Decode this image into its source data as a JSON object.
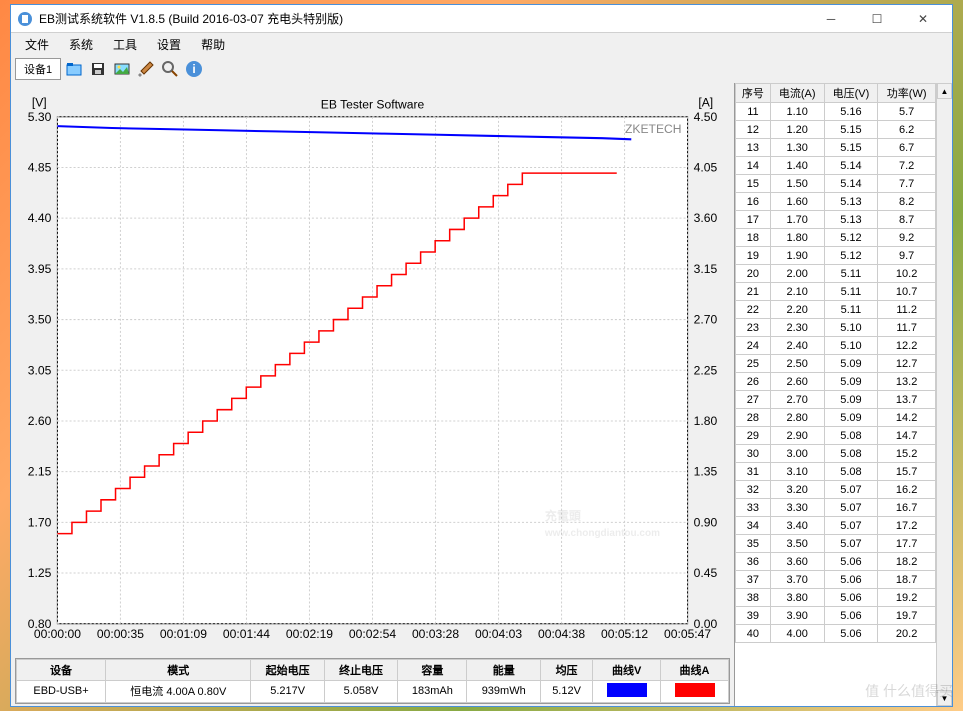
{
  "window": {
    "title": "EB测试系统软件 V1.8.5 (Build 2016-03-07 充电头特别版)"
  },
  "menu": {
    "items": [
      "文件",
      "系统",
      "工具",
      "设置",
      "帮助"
    ]
  },
  "toolbar": {
    "tab": "设备1"
  },
  "chart": {
    "title": "EB Tester Software",
    "watermark": "ZKETECH",
    "y1_label": "[V]",
    "y2_label": "[A]",
    "y1_min": 0.8,
    "y1_max": 5.3,
    "y1_step": 0.45,
    "y2_min": 0.0,
    "y2_max": 4.5,
    "y2_step": 0.45,
    "x_labels": [
      "00:00:00",
      "00:00:35",
      "00:01:09",
      "00:01:44",
      "00:02:19",
      "00:02:54",
      "00:03:28",
      "00:04:03",
      "00:04:38",
      "00:05:12",
      "00:05:47"
    ],
    "y1_ticks": [
      "0.80",
      "1.25",
      "1.70",
      "2.15",
      "2.60",
      "3.05",
      "3.50",
      "3.95",
      "4.40",
      "4.85",
      "5.30"
    ],
    "y2_ticks": [
      "0.00",
      "0.45",
      "0.90",
      "1.35",
      "1.80",
      "2.25",
      "2.70",
      "3.15",
      "3.60",
      "4.05",
      "4.50"
    ],
    "voltage_color": "#0000ff",
    "current_color": "#ff0000",
    "grid_color": "#d0d0d0",
    "bg_color": "#ffffff",
    "voltage_data": [
      [
        0,
        5.217
      ],
      [
        30,
        5.2
      ],
      [
        60,
        5.19
      ],
      [
        90,
        5.18
      ],
      [
        120,
        5.17
      ],
      [
        150,
        5.16
      ],
      [
        180,
        5.15
      ],
      [
        210,
        5.14
      ],
      [
        240,
        5.13
      ],
      [
        270,
        5.12
      ],
      [
        300,
        5.11
      ],
      [
        316,
        5.1
      ]
    ],
    "current_data": [
      [
        0,
        0.8
      ],
      [
        8,
        0.8
      ],
      [
        8,
        0.9
      ],
      [
        16,
        0.9
      ],
      [
        16,
        1.0
      ],
      [
        24,
        1.0
      ],
      [
        24,
        1.1
      ],
      [
        32,
        1.1
      ],
      [
        32,
        1.2
      ],
      [
        40,
        1.2
      ],
      [
        40,
        1.3
      ],
      [
        48,
        1.3
      ],
      [
        48,
        1.4
      ],
      [
        56,
        1.4
      ],
      [
        56,
        1.5
      ],
      [
        64,
        1.5
      ],
      [
        64,
        1.6
      ],
      [
        72,
        1.6
      ],
      [
        72,
        1.7
      ],
      [
        80,
        1.7
      ],
      [
        80,
        1.8
      ],
      [
        88,
        1.8
      ],
      [
        88,
        1.9
      ],
      [
        96,
        1.9
      ],
      [
        96,
        2.0
      ],
      [
        104,
        2.0
      ],
      [
        104,
        2.1
      ],
      [
        112,
        2.1
      ],
      [
        112,
        2.2
      ],
      [
        120,
        2.2
      ],
      [
        120,
        2.3
      ],
      [
        128,
        2.3
      ],
      [
        128,
        2.4
      ],
      [
        136,
        2.4
      ],
      [
        136,
        2.5
      ],
      [
        144,
        2.5
      ],
      [
        144,
        2.6
      ],
      [
        152,
        2.6
      ],
      [
        152,
        2.7
      ],
      [
        160,
        2.7
      ],
      [
        160,
        2.8
      ],
      [
        168,
        2.8
      ],
      [
        168,
        2.9
      ],
      [
        176,
        2.9
      ],
      [
        176,
        3.0
      ],
      [
        184,
        3.0
      ],
      [
        184,
        3.1
      ],
      [
        192,
        3.1
      ],
      [
        192,
        3.2
      ],
      [
        200,
        3.2
      ],
      [
        200,
        3.3
      ],
      [
        208,
        3.3
      ],
      [
        208,
        3.4
      ],
      [
        216,
        3.4
      ],
      [
        216,
        3.5
      ],
      [
        224,
        3.5
      ],
      [
        224,
        3.6
      ],
      [
        232,
        3.6
      ],
      [
        232,
        3.7
      ],
      [
        240,
        3.7
      ],
      [
        240,
        3.8
      ],
      [
        248,
        3.8
      ],
      [
        248,
        3.9
      ],
      [
        256,
        3.9
      ],
      [
        256,
        4.0
      ],
      [
        308,
        4.0
      ]
    ]
  },
  "status": {
    "headers": [
      "设备",
      "模式",
      "起始电压",
      "终止电压",
      "容量",
      "能量",
      "均压",
      "曲线V",
      "曲线A"
    ],
    "device": "EBD-USB+",
    "mode": "恒电流  4.00A  0.80V",
    "start_v": "5.217V",
    "end_v": "5.058V",
    "capacity": "183mAh",
    "energy": "939mWh",
    "avg_v": "5.12V",
    "curve_v_color": "#0000ff",
    "curve_a_color": "#ff0000"
  },
  "dataTable": {
    "headers": [
      "序号",
      "电流(A)",
      "电压(V)",
      "功率(W)"
    ],
    "rows": [
      [
        "11",
        "1.10",
        "5.16",
        "5.7"
      ],
      [
        "12",
        "1.20",
        "5.15",
        "6.2"
      ],
      [
        "13",
        "1.30",
        "5.15",
        "6.7"
      ],
      [
        "14",
        "1.40",
        "5.14",
        "7.2"
      ],
      [
        "15",
        "1.50",
        "5.14",
        "7.7"
      ],
      [
        "16",
        "1.60",
        "5.13",
        "8.2"
      ],
      [
        "17",
        "1.70",
        "5.13",
        "8.7"
      ],
      [
        "18",
        "1.80",
        "5.12",
        "9.2"
      ],
      [
        "19",
        "1.90",
        "5.12",
        "9.7"
      ],
      [
        "20",
        "2.00",
        "5.11",
        "10.2"
      ],
      [
        "21",
        "2.10",
        "5.11",
        "10.7"
      ],
      [
        "22",
        "2.20",
        "5.11",
        "11.2"
      ],
      [
        "23",
        "2.30",
        "5.10",
        "11.7"
      ],
      [
        "24",
        "2.40",
        "5.10",
        "12.2"
      ],
      [
        "25",
        "2.50",
        "5.09",
        "12.7"
      ],
      [
        "26",
        "2.60",
        "5.09",
        "13.2"
      ],
      [
        "27",
        "2.70",
        "5.09",
        "13.7"
      ],
      [
        "28",
        "2.80",
        "5.09",
        "14.2"
      ],
      [
        "29",
        "2.90",
        "5.08",
        "14.7"
      ],
      [
        "30",
        "3.00",
        "5.08",
        "15.2"
      ],
      [
        "31",
        "3.10",
        "5.08",
        "15.7"
      ],
      [
        "32",
        "3.20",
        "5.07",
        "16.2"
      ],
      [
        "33",
        "3.30",
        "5.07",
        "16.7"
      ],
      [
        "34",
        "3.40",
        "5.07",
        "17.2"
      ],
      [
        "35",
        "3.50",
        "5.07",
        "17.7"
      ],
      [
        "36",
        "3.60",
        "5.06",
        "18.2"
      ],
      [
        "37",
        "3.70",
        "5.06",
        "18.7"
      ],
      [
        "38",
        "3.80",
        "5.06",
        "19.2"
      ],
      [
        "39",
        "3.90",
        "5.06",
        "19.7"
      ],
      [
        "40",
        "4.00",
        "5.06",
        "20.2"
      ]
    ]
  },
  "watermarks": {
    "corner": "值 什么值得买",
    "center_main": "充電頭",
    "center_sub": "www.chongdiantou.com"
  }
}
